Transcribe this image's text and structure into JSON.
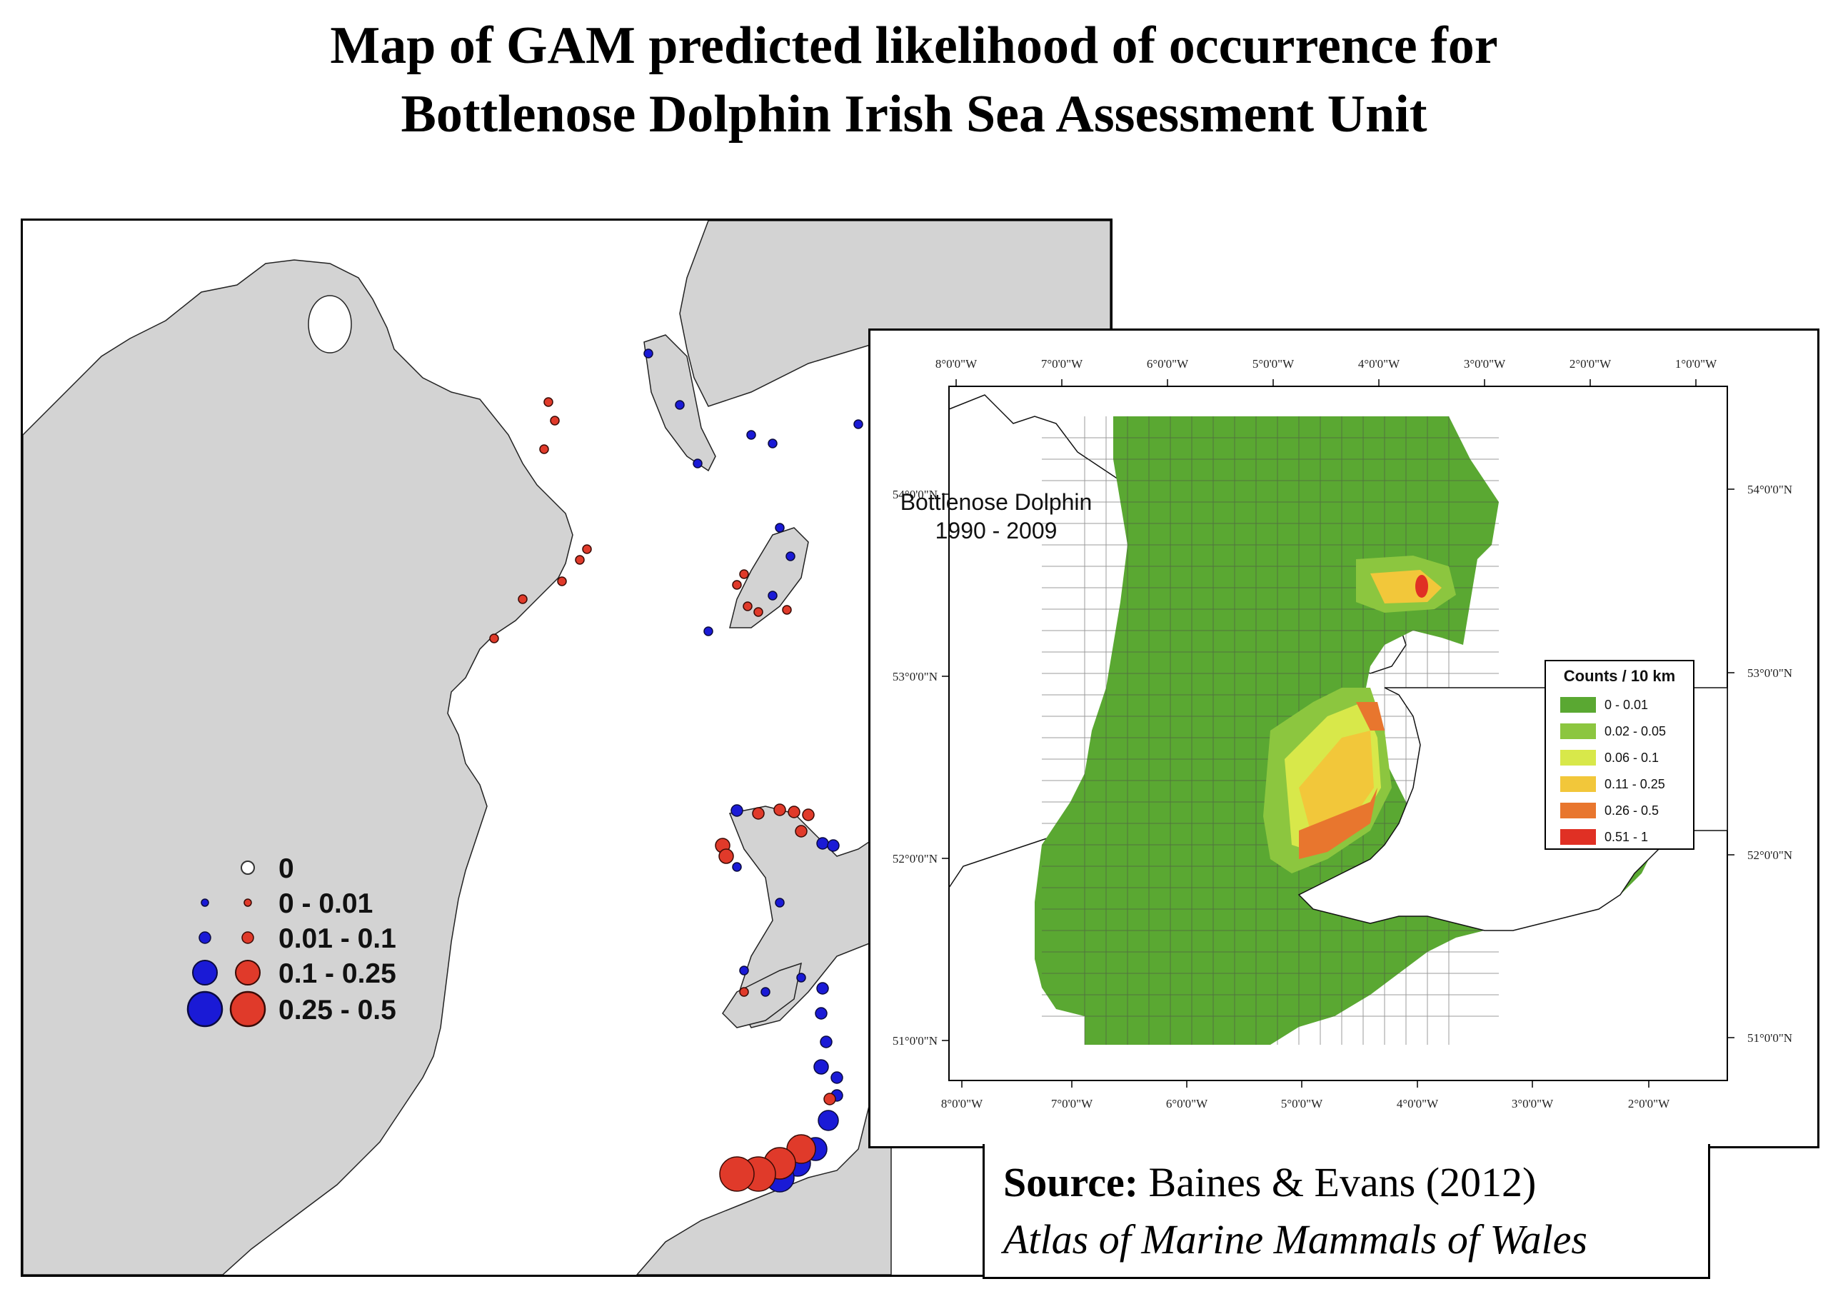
{
  "title": {
    "line1": "Map of GAM predicted likelihood of occurrence for",
    "line2": "Bottlenose Dolphin Irish Sea Assessment Unit"
  },
  "left_map": {
    "legend": {
      "items": [
        {
          "label": "0"
        },
        {
          "label": "0 - 0.01"
        },
        {
          "label": "0.01 - 0.1"
        },
        {
          "label": "0.1 - 0.25"
        },
        {
          "label": "0.25 - 0.5"
        }
      ]
    },
    "colors": {
      "land": "#d3d3d3",
      "sea": "#ffffff",
      "blue_points": "#1a1ad6",
      "red_points": "#e03a2a"
    }
  },
  "right_map": {
    "annotation_line1": "Bottlenose Dolphin",
    "annotation_line2": "1990 - 2009",
    "top_axis": [
      "8°0'0\"W",
      "7°0'0\"W",
      "6°0'0\"W",
      "5°0'0\"W",
      "4°0'0\"W",
      "3°0'0\"W",
      "2°0'0\"W",
      "1°0'0\"W"
    ],
    "bottom_axis": [
      "8°0'0\"W",
      "7°0'0\"W",
      "6°0'0\"W",
      "5°0'0\"W",
      "4°0'0\"W",
      "3°0'0\"W",
      "2°0'0\"W"
    ],
    "lat_axis": [
      "54°0'0\"N",
      "53°0'0\"N",
      "52°0'0\"N",
      "51°0'0\"N"
    ],
    "legend": {
      "title": "Counts / 10 km",
      "items": [
        {
          "label": "0 - 0.01",
          "color": "#5aa832"
        },
        {
          "label": "0.02 - 0.05",
          "color": "#8cc63f"
        },
        {
          "label": "0.06 - 0.1",
          "color": "#d8e84a"
        },
        {
          "label": "0.11 - 0.25",
          "color": "#f2c73a"
        },
        {
          "label": "0.26 - 0.5",
          "color": "#e8762e"
        },
        {
          "label": "0.51 - 1",
          "color": "#e03024"
        }
      ]
    }
  },
  "source": {
    "label": "Source:",
    "citation": "Baines & Evans (2012)",
    "atlas": "Atlas of Marine Mammals of Wales"
  }
}
